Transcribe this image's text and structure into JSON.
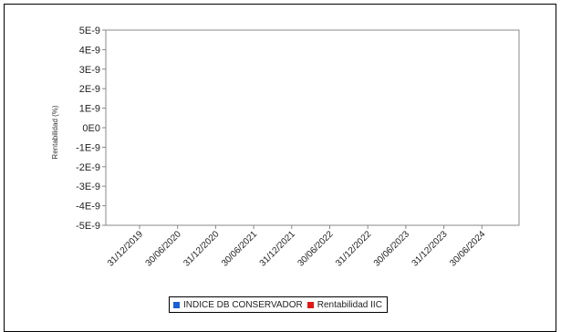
{
  "chart_data": {
    "type": "line",
    "title": "",
    "xlabel": "",
    "ylabel": "Rentabilidad (%)",
    "y_ticks": [
      "5E-9",
      "4E-9",
      "3E-9",
      "2E-9",
      "1E-9",
      "0E0",
      "-1E-9",
      "-2E-9",
      "-3E-9",
      "-4E-9",
      "-5E-9"
    ],
    "ylim": [
      -5e-09,
      5e-09
    ],
    "x_ticks": [
      "31/12/2019",
      "30/06/2020",
      "31/12/2020",
      "30/06/2021",
      "31/12/2021",
      "30/06/2022",
      "31/12/2022",
      "30/06/2023",
      "31/12/2023",
      "30/06/2024"
    ],
    "grid": false,
    "legend_position": "bottom",
    "series": [
      {
        "name": "INDICE DB CONSERVADOR",
        "color": "#1a5fd6",
        "values": []
      },
      {
        "name": "Rentabilidad IIC",
        "color": "#e01818",
        "values": []
      }
    ]
  }
}
